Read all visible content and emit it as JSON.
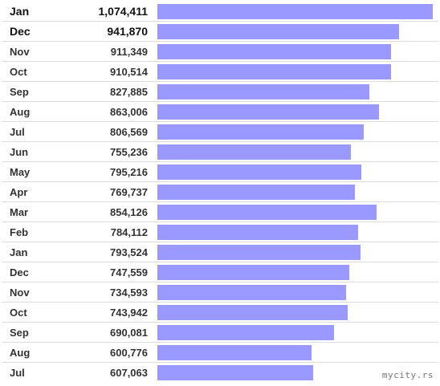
{
  "chart_data": {
    "type": "bar",
    "orientation": "horizontal",
    "bar_color": "#9999ff",
    "categories": [
      "Jan",
      "Dec",
      "Nov",
      "Oct",
      "Sep",
      "Aug",
      "Jul",
      "Jun",
      "May",
      "Apr",
      "Mar",
      "Feb",
      "Jan",
      "Dec",
      "Nov",
      "Oct",
      "Sep",
      "Aug",
      "Jul"
    ],
    "value_labels": [
      "1,074,411",
      "941,870",
      "911,349",
      "910,514",
      "827,885",
      "863,006",
      "806,569",
      "755,236",
      "795,216",
      "769,737",
      "854,126",
      "784,112",
      "793,524",
      "747,559",
      "734,593",
      "743,942",
      "690,081",
      "600,776",
      "607,063"
    ],
    "values": [
      1074411,
      941870,
      911349,
      910514,
      827885,
      863006,
      806569,
      755236,
      795216,
      769737,
      854126,
      784112,
      793524,
      747559,
      734593,
      743942,
      690081,
      600776,
      607063
    ],
    "xlim": [
      0,
      1074411
    ]
  },
  "watermark": "mycity.rs"
}
